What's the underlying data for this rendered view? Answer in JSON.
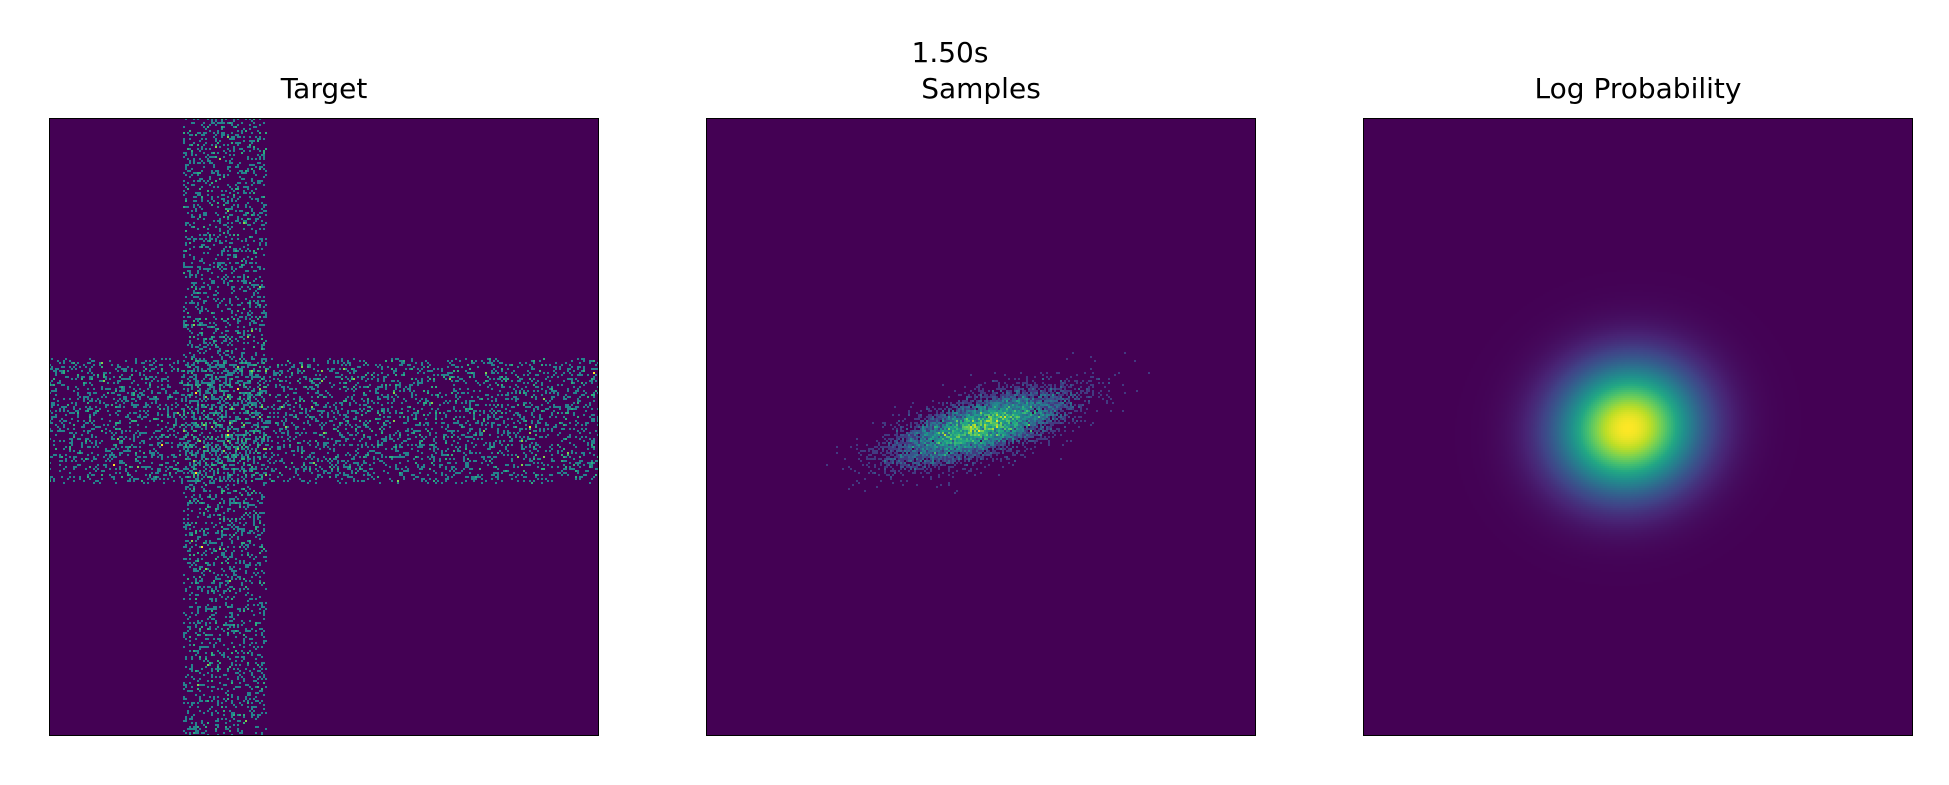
{
  "figure": {
    "suptitle": "1.50s",
    "colors": {
      "background": "#440154",
      "colormap": "viridis",
      "frame": "#000000"
    }
  },
  "chart_data": [
    {
      "type": "heatmap",
      "title": "Target",
      "description_of_field": "cross-shaped sample histogram",
      "components": [
        {
          "orientation": "vertical",
          "center_frac": 0.32,
          "half_width_frac": 0.075
        },
        {
          "orientation": "horizontal",
          "center_frac": 0.49,
          "half_width_frac": 0.1
        }
      ],
      "grid": false,
      "axes_ticks": false
    },
    {
      "type": "heatmap",
      "title": "Samples",
      "description_of_field": "tilted elongated sample cluster",
      "center_frac": [
        0.5,
        0.5
      ],
      "angle_deg": -17,
      "sigma_major_frac": 0.08,
      "sigma_minor_frac": 0.018,
      "grid": false,
      "axes_ticks": false
    },
    {
      "type": "heatmap",
      "title": "Log Probability",
      "description_of_field": "smooth gaussian density",
      "center_frac": [
        0.48,
        0.5
      ],
      "angle_deg": -15,
      "sigma_major_frac": 0.1,
      "sigma_minor_frac": 0.09,
      "grid": false,
      "axes_ticks": false
    }
  ]
}
